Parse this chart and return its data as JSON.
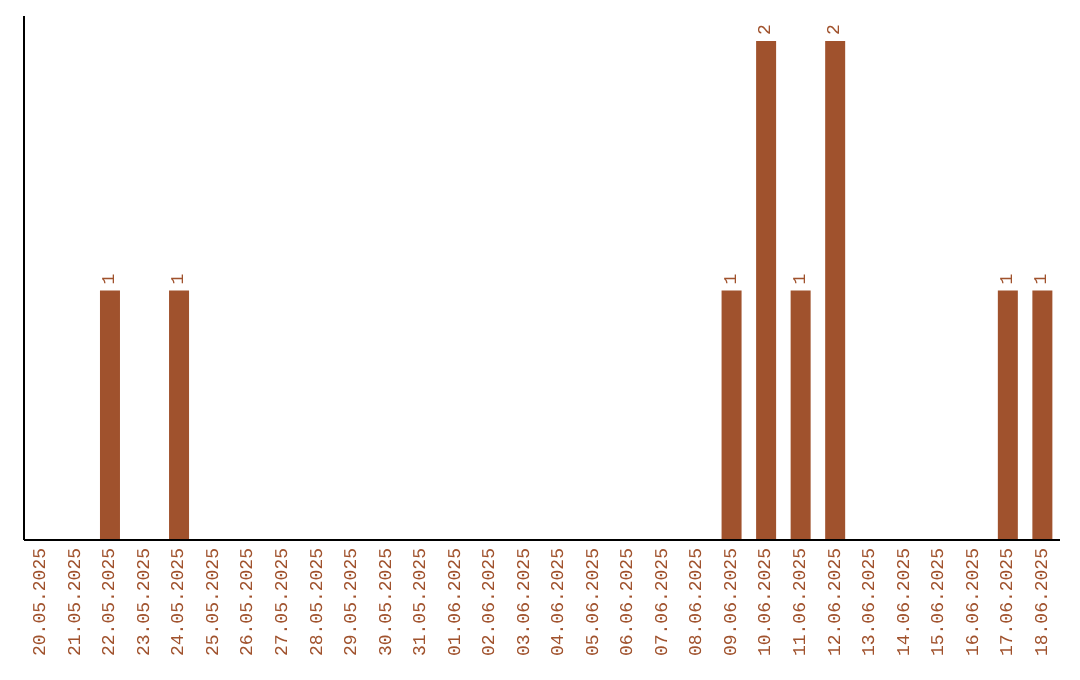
{
  "chart_data": {
    "type": "bar",
    "categories": [
      "20.05.2025",
      "21.05.2025",
      "22.05.2025",
      "23.05.2025",
      "24.05.2025",
      "25.05.2025",
      "26.05.2025",
      "27.05.2025",
      "28.05.2025",
      "29.05.2025",
      "30.05.2025",
      "31.05.2025",
      "01.06.2025",
      "02.06.2025",
      "03.06.2025",
      "04.06.2025",
      "05.06.2025",
      "06.06.2025",
      "07.06.2025",
      "08.06.2025",
      "09.06.2025",
      "10.06.2025",
      "11.06.2025",
      "12.06.2025",
      "13.06.2025",
      "14.06.2025",
      "15.06.2025",
      "16.06.2025",
      "17.06.2025",
      "18.06.2025"
    ],
    "values": [
      0,
      0,
      1,
      0,
      1,
      0,
      0,
      0,
      0,
      0,
      0,
      0,
      0,
      0,
      0,
      0,
      0,
      0,
      0,
      0,
      1,
      2,
      1,
      2,
      0,
      0,
      0,
      0,
      1,
      1
    ],
    "value_labels": [
      null,
      null,
      "1",
      null,
      "1",
      null,
      null,
      null,
      null,
      null,
      null,
      null,
      null,
      null,
      null,
      null,
      null,
      null,
      null,
      null,
      "1",
      "2",
      "1",
      "2",
      null,
      null,
      null,
      null,
      "1",
      "1"
    ],
    "color": "#a0522d",
    "ylim": [
      0,
      2.1
    ],
    "tick_labels": "x",
    "grid": false,
    "legend": false
  }
}
